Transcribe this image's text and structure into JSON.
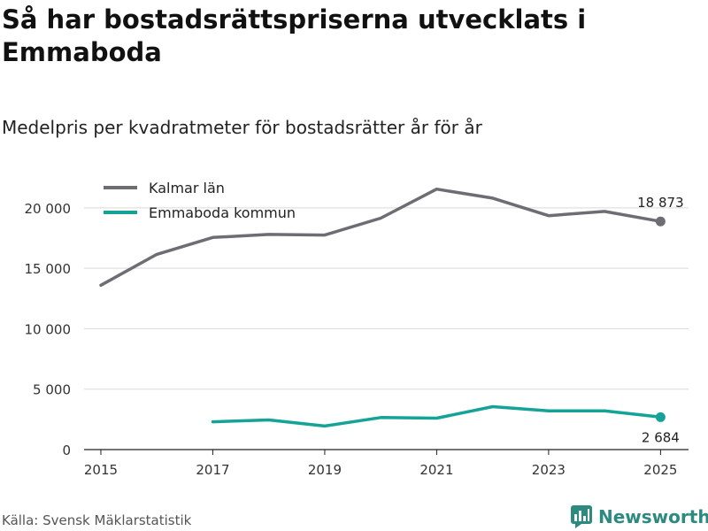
{
  "title": "Så har bostadsrättspriserna utvecklats i Emmaboda",
  "subtitle": "Medelpris per kvadratmeter för bostadsrätter år för år",
  "source": "Källa: Svensk Mäklarstatistik",
  "brand": "Newsworthy",
  "colors": {
    "kalmar": "#6e6d73",
    "emmaboda": "#15a398",
    "grid": "#d9d9d9",
    "brand": "#2c8a7e"
  },
  "chart_data": {
    "type": "line",
    "title": "Så har bostadsrättspriserna utvecklats i Emmaboda",
    "subtitle": "Medelpris per kvadratmeter för bostadsrätter år för år",
    "xlabel": "",
    "ylabel": "",
    "xlim": [
      2014.7,
      2025.5
    ],
    "ylim": [
      0,
      21600
    ],
    "x_ticks": [
      2015,
      2017,
      2019,
      2021,
      2023,
      2025
    ],
    "x_tick_labels": [
      "2015",
      "2017",
      "2019",
      "2021",
      "2023",
      "2025"
    ],
    "y_ticks": [
      0,
      5000,
      10000,
      15000,
      20000
    ],
    "y_tick_labels": [
      "0",
      "5 000",
      "10 000",
      "15 000",
      "20 000"
    ],
    "grid": true,
    "legend_position": "top-left",
    "series": [
      {
        "name": "Kalmar län",
        "color": "#6e6d73",
        "x": [
          2015,
          2016,
          2017,
          2018,
          2019,
          2020,
          2021,
          2022,
          2023,
          2024,
          2025
        ],
        "values": [
          13600,
          16150,
          17550,
          17800,
          17750,
          19150,
          21550,
          20800,
          19350,
          19700,
          18873
        ],
        "end_label": "18 873",
        "end_label_position": "above"
      },
      {
        "name": "Emmaboda kommun",
        "color": "#15a398",
        "x": [
          2017,
          2018,
          2019,
          2020,
          2021,
          2022,
          2023,
          2024,
          2025
        ],
        "values": [
          2300,
          2450,
          1950,
          2650,
          2600,
          3550,
          3200,
          3200,
          2684
        ],
        "end_label": "2 684",
        "end_label_position": "below"
      }
    ]
  }
}
